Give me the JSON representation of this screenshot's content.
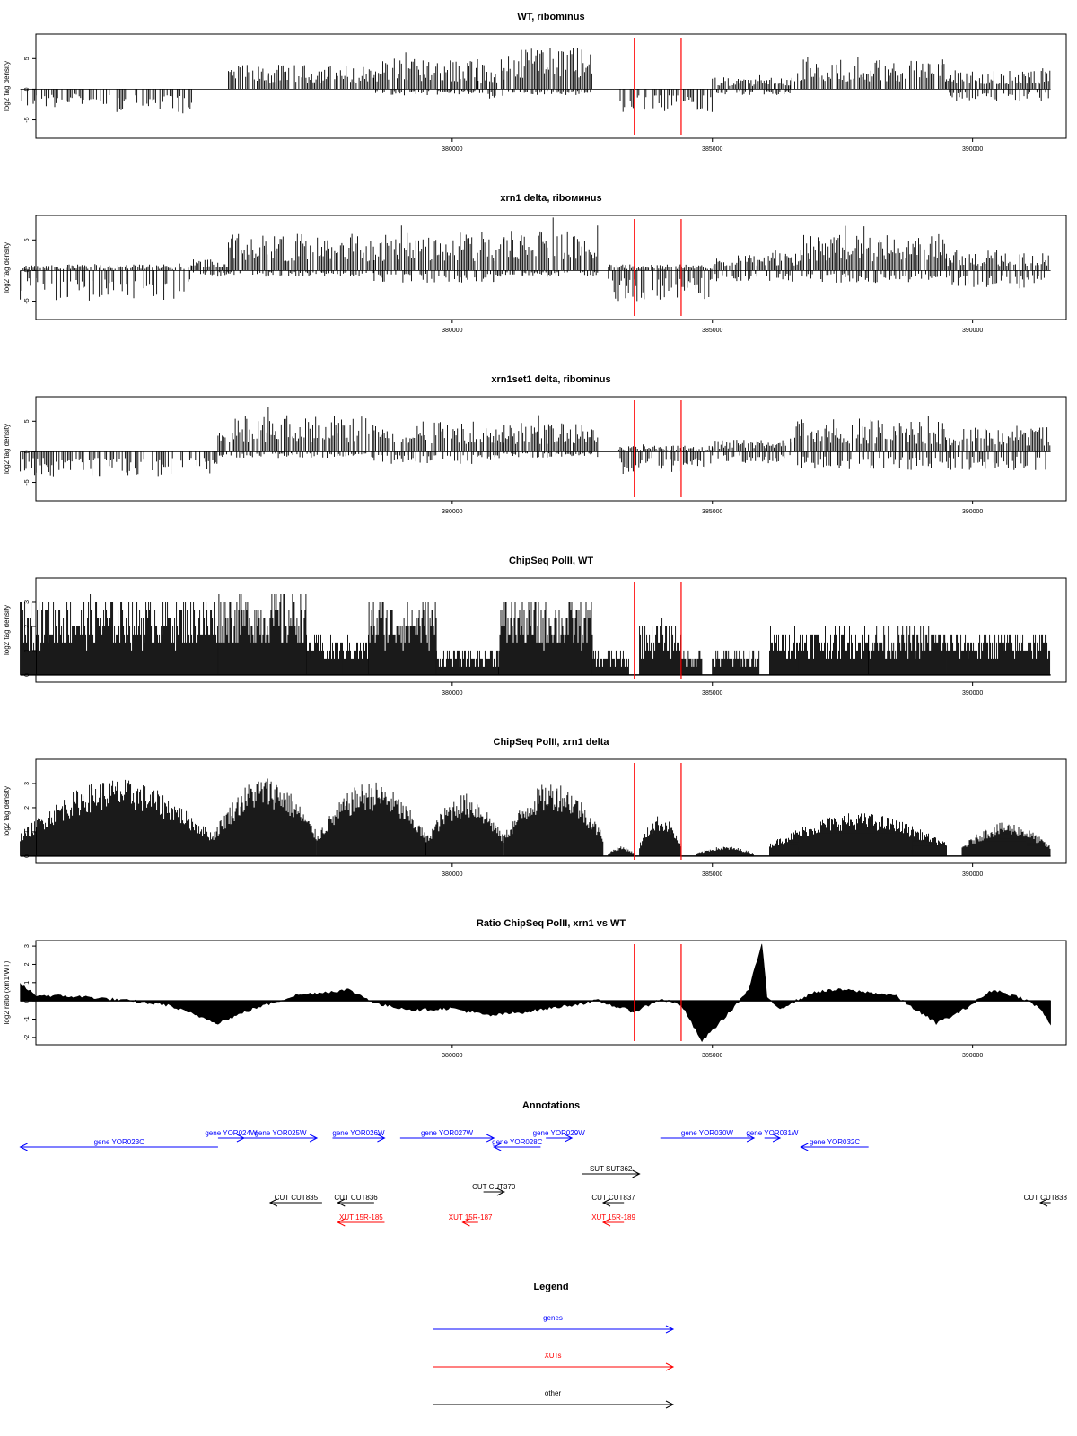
{
  "colors": {
    "data": "#000000",
    "marker": "#ff0000",
    "gene": "#0000ff",
    "xut": "#ff0000",
    "other": "#000000"
  },
  "chart_data": [
    {
      "type": "bar",
      "title": "WT, ribominus",
      "ylabel": "log2 tag density",
      "xlim": [
        372000,
        391800
      ],
      "ylim": [
        -8,
        9
      ],
      "yticks": [
        -5,
        0,
        5
      ],
      "xticks": [
        380000,
        385000,
        390000
      ],
      "style": "spikes",
      "markers_x": [
        383500,
        384400
      ],
      "segments": [
        {
          "x": [
            371700,
            373500
          ],
          "top": 0,
          "bottom": -3
        },
        {
          "x": [
            373500,
            375000
          ],
          "top": 0,
          "bottom": -4
        },
        {
          "x": [
            375700,
            378500
          ],
          "top": 4,
          "bottom": 0
        },
        {
          "x": [
            378500,
            380500
          ],
          "top": 5,
          "bottom": -1
        },
        {
          "x": [
            380500,
            381000
          ],
          "top": 4,
          "bottom": -2
        },
        {
          "x": [
            381000,
            382700
          ],
          "top": 7,
          "bottom": -1
        },
        {
          "x": [
            383200,
            385000
          ],
          "top": 0,
          "bottom": -4
        },
        {
          "x": [
            385000,
            386500
          ],
          "top": 2,
          "bottom": -1
        },
        {
          "x": [
            386500,
            389500
          ],
          "top": 5,
          "bottom": 0
        },
        {
          "x": [
            389500,
            391500
          ],
          "top": 3,
          "bottom": -2
        }
      ]
    },
    {
      "type": "bar",
      "title": "xrn1 delta, riboминus",
      "ylabel": "log2 tag density",
      "xlim": [
        372000,
        391800
      ],
      "ylim": [
        -8,
        9
      ],
      "yticks": [
        -5,
        0,
        5
      ],
      "xticks": [
        380000,
        385000,
        390000
      ],
      "style": "spikes",
      "markers_x": [
        383500,
        384400
      ],
      "segments": [
        {
          "x": [
            371700,
            375000
          ],
          "top": 1,
          "bottom": -5
        },
        {
          "x": [
            375000,
            375700
          ],
          "top": 2,
          "bottom": -1
        },
        {
          "x": [
            375700,
            378500
          ],
          "top": 6,
          "bottom": -1
        },
        {
          "x": [
            378500,
            381000
          ],
          "top": 6,
          "bottom": -2
        },
        {
          "x": [
            381000,
            382800
          ],
          "top": 7,
          "bottom": -1
        },
        {
          "x": [
            383000,
            385000
          ],
          "top": 1,
          "bottom": -5
        },
        {
          "x": [
            385000,
            386700
          ],
          "top": 3,
          "bottom": -2
        },
        {
          "x": [
            386700,
            389500
          ],
          "top": 6,
          "bottom": -2
        },
        {
          "x": [
            389500,
            391500
          ],
          "top": 3,
          "bottom": -3
        }
      ]
    },
    {
      "type": "bar",
      "title": "xrn1set1 delta, ribominus",
      "ylabel": "log2 tag density",
      "xlim": [
        372000,
        391800
      ],
      "ylim": [
        -8,
        9
      ],
      "yticks": [
        -5,
        0,
        5
      ],
      "xticks": [
        380000,
        385000,
        390000
      ],
      "style": "spikes",
      "markers_x": [
        383500,
        384400
      ],
      "segments": [
        {
          "x": [
            371700,
            375500
          ],
          "top": 0,
          "bottom": -4
        },
        {
          "x": [
            375500,
            378500
          ],
          "top": 6,
          "bottom": -1
        },
        {
          "x": [
            378500,
            381000
          ],
          "top": 5,
          "bottom": -2
        },
        {
          "x": [
            381000,
            382800
          ],
          "top": 5,
          "bottom": -1
        },
        {
          "x": [
            383200,
            385000
          ],
          "top": 1,
          "bottom": -4
        },
        {
          "x": [
            385000,
            386500
          ],
          "top": 2,
          "bottom": -2
        },
        {
          "x": [
            386500,
            389500
          ],
          "top": 5,
          "bottom": -3
        },
        {
          "x": [
            389500,
            391500
          ],
          "top": 4,
          "bottom": -3
        }
      ]
    },
    {
      "type": "bar",
      "title": "ChipSeq PolII, WT",
      "ylabel": "log2 tag density",
      "xlim": [
        372000,
        391800
      ],
      "ylim": [
        -0.3,
        4
      ],
      "yticks": [
        0,
        1,
        2,
        3
      ],
      "xticks": [
        380000,
        385000,
        390000
      ],
      "style": "dense",
      "markers_x": [
        383500,
        384400
      ],
      "segments": [
        {
          "x": [
            371700,
            375500
          ],
          "top": 3.2,
          "bottom": 0
        },
        {
          "x": [
            375500,
            377200
          ],
          "top": 3.4,
          "bottom": 0
        },
        {
          "x": [
            377200,
            378400
          ],
          "top": 1.6,
          "bottom": 0
        },
        {
          "x": [
            378400,
            379700
          ],
          "top": 3.1,
          "bottom": 0
        },
        {
          "x": [
            379700,
            380900
          ],
          "top": 1.0,
          "bottom": 0
        },
        {
          "x": [
            380900,
            382700
          ],
          "top": 3.1,
          "bottom": 0
        },
        {
          "x": [
            382700,
            383400
          ],
          "top": 1.0,
          "bottom": 0
        },
        {
          "x": [
            383600,
            384400
          ],
          "top": 2.2,
          "bottom": 0
        },
        {
          "x": [
            384400,
            384800
          ],
          "top": 1.0,
          "bottom": 0
        },
        {
          "x": [
            385000,
            385900
          ],
          "top": 1.0,
          "bottom": 0
        },
        {
          "x": [
            386100,
            388000
          ],
          "top": 2.0,
          "bottom": 0
        },
        {
          "x": [
            388000,
            389500
          ],
          "top": 2.0,
          "bottom": 0
        },
        {
          "x": [
            389500,
            391500
          ],
          "top": 1.8,
          "bottom": 0
        }
      ]
    },
    {
      "type": "bar",
      "title": "ChipSeq PolII, xrn1 delta",
      "ylabel": "log2 tag density",
      "xlim": [
        372000,
        391800
      ],
      "ylim": [
        -0.3,
        4
      ],
      "yticks": [
        0,
        1,
        2,
        3
      ],
      "xticks": [
        380000,
        385000,
        390000
      ],
      "style": "humps",
      "markers_x": [
        383500,
        384400
      ],
      "segments": [
        {
          "x": [
            371700,
            375400
          ],
          "top": 3.2,
          "bottom": 0
        },
        {
          "x": [
            375400,
            377400
          ],
          "top": 3.3,
          "bottom": 0
        },
        {
          "x": [
            377400,
            379500
          ],
          "top": 3.1,
          "bottom": 0
        },
        {
          "x": [
            379500,
            381000
          ],
          "top": 2.6,
          "bottom": 0
        },
        {
          "x": [
            381000,
            382900
          ],
          "top": 3.1,
          "bottom": 0
        },
        {
          "x": [
            383000,
            383500
          ],
          "top": 0.4,
          "bottom": 0
        },
        {
          "x": [
            383600,
            384400
          ],
          "top": 1.7,
          "bottom": 0
        },
        {
          "x": [
            384700,
            385800
          ],
          "top": 0.4,
          "bottom": 0
        },
        {
          "x": [
            386100,
            389500
          ],
          "top": 1.8,
          "bottom": 0
        },
        {
          "x": [
            389800,
            391500
          ],
          "top": 1.4,
          "bottom": 0
        }
      ]
    },
    {
      "type": "area",
      "title": "Ratio ChipSeq PolII, xrn1 vs WT",
      "ylabel": "log2 ratio (xrn1/WT)",
      "xlim": [
        372000,
        391800
      ],
      "ylim": [
        -2.4,
        3.3
      ],
      "yticks": [
        -2,
        -1,
        0,
        1,
        2,
        3
      ],
      "xticks": [
        380000,
        385000,
        390000
      ],
      "markers_x": [
        383500,
        384400
      ],
      "x": [
        371700,
        372000,
        373000,
        374500,
        375500,
        376200,
        377000,
        378000,
        378600,
        379300,
        380000,
        380700,
        381400,
        382100,
        382800,
        383500,
        384000,
        384400,
        384800,
        385300,
        385700,
        385950,
        386050,
        386300,
        387000,
        387500,
        388500,
        389300,
        389700,
        390400,
        391000,
        391300,
        391500
      ],
      "y": [
        0.9,
        0.3,
        0.2,
        -0.2,
        -1.2,
        -0.4,
        0.3,
        0.6,
        -0.2,
        -0.5,
        -0.4,
        -0.8,
        -0.6,
        -0.3,
        0.0,
        -0.6,
        0.1,
        -0.2,
        -2.2,
        -0.7,
        0.6,
        3.1,
        0.2,
        -0.4,
        0.5,
        0.6,
        0.3,
        -1.2,
        -0.7,
        0.6,
        0.1,
        -0.4,
        -1.3
      ]
    }
  ],
  "annotations": {
    "title": "Annotations",
    "features": [
      {
        "label": "gene YOR023C",
        "type": "gene",
        "start": 375500,
        "end": 371700
      },
      {
        "label": "gene YOR024W",
        "type": "gene",
        "start": 375500,
        "end": 376000
      },
      {
        "label": "gene YOR025W",
        "type": "gene",
        "start": 376000,
        "end": 377400
      },
      {
        "label": "gene YOR026W",
        "type": "gene",
        "start": 377700,
        "end": 378700
      },
      {
        "label": "gene YOR027W",
        "type": "gene",
        "start": 379000,
        "end": 380800
      },
      {
        "label": "gene YOR028C",
        "type": "gene",
        "start": 381700,
        "end": 380800
      },
      {
        "label": "gene YOR029W",
        "type": "gene",
        "start": 381800,
        "end": 382300
      },
      {
        "label": "gene YOR030W",
        "type": "gene",
        "start": 384000,
        "end": 385800
      },
      {
        "label": "gene YOR031W",
        "type": "gene",
        "start": 386000,
        "end": 386300
      },
      {
        "label": "gene YOR032C",
        "type": "gene",
        "start": 388000,
        "end": 386700
      },
      {
        "label": "SUT SUT362",
        "type": "other",
        "start": 382500,
        "end": 383600
      },
      {
        "label": "CUT CUT370",
        "type": "other",
        "start": 380600,
        "end": 381000
      },
      {
        "label": "CUT CUT835",
        "type": "other",
        "start": 377500,
        "end": 376500
      },
      {
        "label": "CUT CUT836",
        "type": "other",
        "start": 378500,
        "end": 377800
      },
      {
        "label": "CUT CUT837",
        "type": "other",
        "start": 383300,
        "end": 382900
      },
      {
        "label": "CUT CUT838",
        "type": "other",
        "start": 391500,
        "end": 391300
      },
      {
        "label": "XUT 15R-185",
        "type": "xut",
        "start": 378700,
        "end": 377800
      },
      {
        "label": "XUT 15R-187",
        "type": "xut",
        "start": 380500,
        "end": 380200
      },
      {
        "label": "XUT 15R-189",
        "type": "xut",
        "start": 383300,
        "end": 382900
      }
    ]
  },
  "legend": {
    "title": "Legend",
    "items": [
      {
        "label": "genes",
        "type": "gene"
      },
      {
        "label": "XUTs",
        "type": "xut"
      },
      {
        "label": "other",
        "type": "other"
      }
    ]
  }
}
